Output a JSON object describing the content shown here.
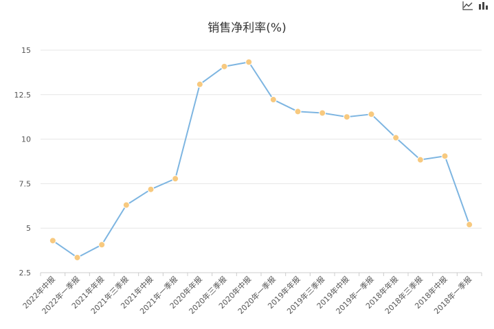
{
  "chart_data": {
    "type": "line",
    "title": "销售净利率(%)",
    "xlabel": "",
    "ylabel": "",
    "categories": [
      "2022年中报",
      "2022年一季报",
      "2021年年报",
      "2021年三季报",
      "2021年中报",
      "2021年一季报",
      "2020年年报",
      "2020年三季报",
      "2020年中报",
      "2020年一季报",
      "2019年年报",
      "2019年三季报",
      "2019年中报",
      "2019年一季报",
      "2018年年报",
      "2018年三季报",
      "2018年中报",
      "2018年一季报"
    ],
    "series": [
      {
        "values": [
          4.3,
          3.35,
          4.07,
          6.3,
          7.18,
          7.78,
          13.08,
          14.08,
          14.33,
          12.22,
          11.55,
          11.47,
          11.25,
          11.4,
          10.08,
          8.84,
          9.05,
          5.2
        ]
      }
    ],
    "ylim": [
      2.5,
      15
    ],
    "yticks": [
      2.5,
      5,
      7.5,
      10,
      12.5,
      15
    ],
    "ytick_labels": [
      "2.5",
      "5",
      "7.5",
      "10",
      "12.5",
      "15"
    ],
    "grid": true,
    "colors": {
      "line": "#7db5e1",
      "marker": "#f7c97f",
      "grid": "#e6e6e6",
      "axis": "#cccccc"
    }
  },
  "toolbar": {
    "line_icon": "line-chart-icon",
    "bar_icon": "bar-chart-icon"
  }
}
